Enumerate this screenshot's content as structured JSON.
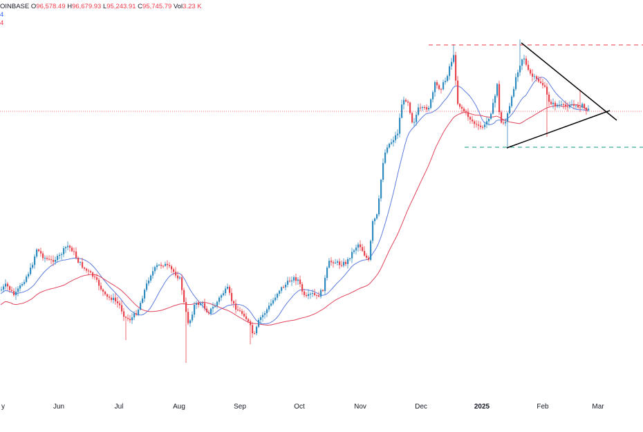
{
  "legend": {
    "source": "OINBASE",
    "open_label": "O",
    "open_value": "96,578.49",
    "high_label": "H",
    "high_value": "96,679.93",
    "low_label": "L",
    "low_value": "95,243.91",
    "close_label": "C",
    "close_value": "95,745.79",
    "vol_label": "Vol",
    "vol_value": "3.23 K",
    "ma_fast": "4",
    "ma_slow": "4"
  },
  "colors": {
    "up": "#2e8bc0",
    "down": "#e8434c",
    "ma_fast": "#5b7bdf",
    "ma_slow": "#e0415a",
    "resistance": "#f23645",
    "support": "#089981",
    "trendline": "#000000",
    "price_line": "#f23645"
  },
  "chart_data": {
    "type": "candlestick",
    "x_axis_labels": [
      "y",
      "Jun",
      "Jul",
      "Aug",
      "Sep",
      "Oct",
      "Nov",
      "Dec",
      "2025",
      "Feb",
      "Mar"
    ],
    "x_axis_bold": "2025",
    "series": [
      {
        "name": "price",
        "kind": "candles"
      },
      {
        "name": "",
        "kind": "moving-average"
      },
      {
        "name": "",
        "kind": "moving-average"
      }
    ],
    "y_range_approx": [
      50000,
      110000
    ],
    "grid": false,
    "last_close": 95745.79
  }
}
